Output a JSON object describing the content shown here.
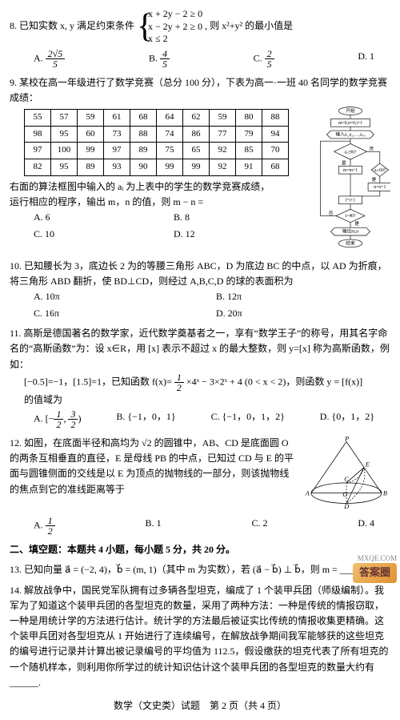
{
  "q8": {
    "text_prefix": "8. 已知实数 x, y 满足约束条件",
    "sys": [
      "x + 2y − 2 ≥ 0",
      "x − 2y + 2 ≥ 0",
      "x ≤ 2"
    ],
    "text_suffix": ", 则 x²+y² 的最小值是",
    "opts": {
      "A": {
        "num": "2√5",
        "den": "5"
      },
      "B": {
        "num": "4",
        "den": "5"
      },
      "C": {
        "num": "2",
        "den": "5"
      },
      "D": "1"
    }
  },
  "q9": {
    "text1": "9. 某校在高一年级进行了数学竞赛（总分 100 分），下表为高一·一班 40 名同学的数学竞赛成绩：",
    "table": [
      [
        55,
        57,
        59,
        61,
        68,
        64,
        62,
        59,
        80,
        88
      ],
      [
        98,
        95,
        60,
        73,
        88,
        74,
        86,
        77,
        79,
        94
      ],
      [
        97,
        100,
        99,
        97,
        89,
        75,
        65,
        92,
        85,
        70
      ],
      [
        82,
        95,
        89,
        93,
        90,
        99,
        99,
        92,
        91,
        68
      ]
    ],
    "text2": "右面的算法框图中输入的 aᵢ 为上表中的学生的数学竞赛成绩，",
    "text3": "运行相应的程序，输出 m，n 的值，则 m − n =",
    "opts": {
      "A": "6",
      "B": "8",
      "C": "10",
      "D": "12"
    },
    "flow": {
      "start": "开始",
      "init": "m=0,n=0,i=1",
      "input": "输入a₁,a₂,…,a₄₀",
      "c1": "aᵢ≥90?",
      "c2": "aᵢ≤60?",
      "a1": "m=m+1",
      "a2": "n=n+1",
      "step": "i=i+1",
      "c3": "i>40?",
      "out": "输出m,n",
      "end": "结束",
      "yes": "是",
      "no": "否"
    }
  },
  "q10": {
    "text": "10. 已知腰长为 3，底边长 2 为的等腰三角形 ABC，D 为底边 BC 的中点，以 AD 为折痕，将三角形 ABD 翻折，使 BD⊥CD，则经过 A,B,C,D 的球的表面积为",
    "opts": {
      "A": "10π",
      "B": "12π",
      "C": "16π",
      "D": "20π"
    }
  },
  "q11": {
    "text1": "11. 高斯是德国著名的数学家，近代数学奠基者之一，享有“数学王子”的称号，用其名字命名的“高斯函数”为：设 x∈R，用 [x] 表示不超过 x 的最大整数，则 y=[x] 称为高斯函数，例如：",
    "ex": "[−0.5]=−1，[1.5]=1，已知函数 f(x)=",
    "fx1num": "1",
    "fx1den": "2",
    "fx1tail": "×4ˣ − 3×2ˣ + 4 (0 < x < 2)，则函数 y = [f(x)]",
    "text2": "的值域为",
    "opts": {
      "A": "[−1/2, 3/2)",
      "B": "{−1，0，1}",
      "C": "{−1，0，1，2}",
      "D": "{0，1，2}"
    }
  },
  "q12": {
    "text": "12. 如图，在底面半径和高均为 √2 的圆锥中，AB、CD 是底面圆 O 的两条互相垂直的直径，E 是母线 PB 的中点，已知过 CD 与 E 的平面与圆锥侧面的交线是以 E 为顶点的抛物线的一部分，则该抛物线的焦点到它的准线距离等于",
    "opts": {
      "A": "1/2",
      "B": "1",
      "C": "2",
      "D": "4"
    },
    "labels": [
      "P",
      "E",
      "C",
      "A",
      "O",
      "D",
      "B"
    ]
  },
  "section2": "二、填空题：本题共 4 小题，每小题 5 分，共 20 分。",
  "q13": "13. 已知向量 a⃗ = (−2, 4)，b⃗ = (m, 1)（其中 m 为实数），若 (a⃗ − b⃗) ⊥ b⃗，则 m = ______.",
  "q14": "14. 解放战争中，国民党军队拥有过多辆各型坦克，编成了 1 个装甲兵团（师级编制）。我军为了知道这个装甲兵团的各型坦克的数量，采用了两种方法：一种是传统的情报窃取，一种是用统计学的方法进行估计。统计学的方法最后被证实比传统的情报收集更精确。这个装甲兵团对各型坦克从 1 开始进行了连续编号，在解放战争期间我军能够获的这些坦克的编号进行记录并计算出被记录编号的平均值为 112.5，假设缴获的坦克代表了所有坦克的一个随机样本，则利用你所学过的统计知识估计这个装甲兵团的各型坦克的数量大约有 ______.",
  "footer": "数学（文史类）试题　第 2 页（共 4 页）",
  "corner": "答案圈",
  "corner_sub": "MXQE.COM"
}
